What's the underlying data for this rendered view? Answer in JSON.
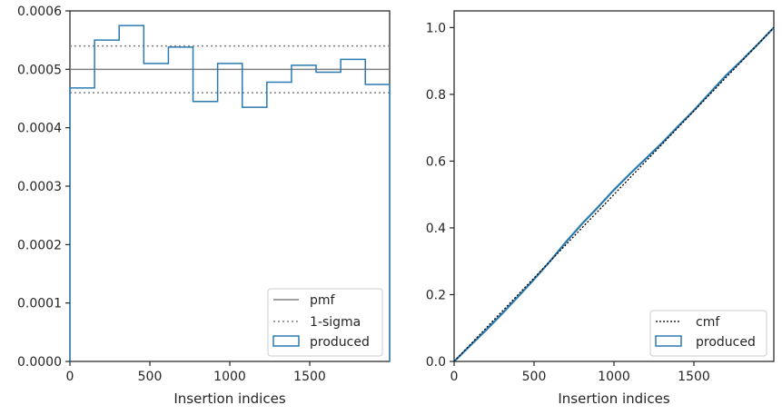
{
  "chart_data": [
    {
      "type": "histogram",
      "xlabel": "Insertion indices",
      "ylabel": "",
      "xlim": [
        0,
        2000
      ],
      "ylim": [
        0,
        0.0006
      ],
      "xticks": [
        0,
        500,
        1000,
        1500
      ],
      "xtick_labels": [
        "0",
        "500",
        "1000",
        "1500"
      ],
      "yticks": [
        0,
        0.0001,
        0.0002,
        0.0003,
        0.0004,
        0.0005,
        0.0006
      ],
      "ytick_labels": [
        "0.0000",
        "0.0001",
        "0.0002",
        "0.0003",
        "0.0004",
        "0.0005",
        "0.0006"
      ],
      "grid": false,
      "legend_position": "lower-right",
      "bin_edges": [
        0,
        154,
        308,
        462,
        616,
        770,
        924,
        1078,
        1232,
        1386,
        1540,
        1694,
        1848,
        2000
      ],
      "produced": [
        0.000468,
        0.00055,
        0.000575,
        0.00051,
        0.000538,
        0.000445,
        0.00051,
        0.000435,
        0.000478,
        0.000507,
        0.000495,
        0.000517,
        0.000474
      ],
      "pmf": 0.0005,
      "sigma_upper": 0.00054,
      "sigma_lower": 0.00046,
      "legend": [
        "pmf",
        "1-sigma",
        "produced"
      ]
    },
    {
      "type": "line",
      "xlabel": "Insertion indices",
      "ylabel": "",
      "xlim": [
        0,
        2000
      ],
      "ylim": [
        0,
        1.05
      ],
      "xticks": [
        0,
        500,
        1000,
        1500
      ],
      "xtick_labels": [
        "0",
        "500",
        "1000",
        "1500"
      ],
      "yticks": [
        0,
        0.2,
        0.4,
        0.6,
        0.8,
        1.0
      ],
      "ytick_labels": [
        "0.0",
        "0.2",
        "0.4",
        "0.6",
        "0.8",
        "1.0"
      ],
      "grid": false,
      "legend_position": "lower-right",
      "cmf": {
        "x": [
          0,
          2000
        ],
        "y": [
          0,
          1.0
        ]
      },
      "produced": {
        "x": [
          0,
          100,
          200,
          300,
          400,
          500,
          600,
          700,
          800,
          900,
          1000,
          1100,
          1200,
          1300,
          1400,
          1500,
          1600,
          1700,
          1800,
          1900,
          2000
        ],
        "y": [
          0,
          0.047,
          0.094,
          0.143,
          0.194,
          0.246,
          0.3,
          0.358,
          0.412,
          0.462,
          0.514,
          0.562,
          0.608,
          0.654,
          0.704,
          0.752,
          0.804,
          0.856,
          0.902,
          0.95,
          1.0
        ]
      },
      "legend": [
        "cmf",
        "produced"
      ]
    }
  ]
}
